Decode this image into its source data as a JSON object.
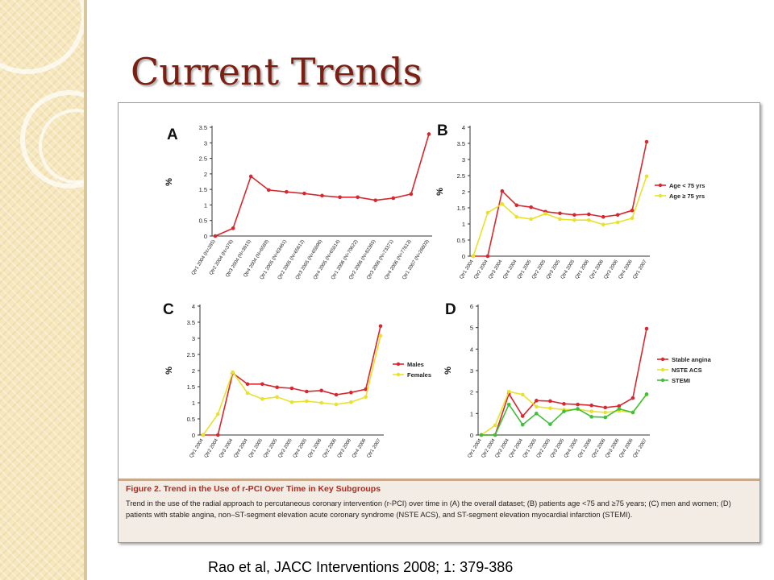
{
  "slide": {
    "title": "Current Trends",
    "citation": "Rao et al, JACC Interventions 2008; 1: 379-386"
  },
  "figure": {
    "caption_title": "Figure 2. Trend in the Use of r-PCI Over Time in Key Subgroups",
    "caption_text": "Trend in the use of the radial approach to percutaneous coronary intervention (r-PCI) over time in (A) the overall dataset; (B) patients age <75 and ≥75 years; (C) men and women; (D) patients with stable angina, non–ST-segment elevation acute coronary syndrome (NSTE ACS), and ST-segment elevation myocardial infarction (STEMI)."
  },
  "colors": {
    "red": "#d7282f",
    "yellow": "#e9e22b",
    "green": "#3fbf3a",
    "title": "#7a1f12",
    "caption_title": "#b5281c"
  },
  "chart_data": [
    {
      "panel": "A",
      "type": "line",
      "ylabel": "%",
      "ylim": [
        0,
        3.5
      ],
      "yticks": [
        "0",
        "0.5",
        "1",
        "1.5",
        "2",
        "2.5",
        "3",
        "3.5"
      ],
      "categories": [
        "Qtr1 2004 (N=285)",
        "Qtr2 2004 (N=376)",
        "Qtr3 2004 (N=3915)",
        "Qtr4 2004 (N=6589)",
        "Qtr1 2005 (N=63461)",
        "Qtr2 2005 (N=65612)",
        "Qtr3 2005 (N=65896)",
        "Qtr4 2005 (N=65814)",
        "Qtr1 2006 (N=70622)",
        "Qtr2 2006 (N=82365)",
        "Qtr3 2006 (N=73371)",
        "Qtr4 2006 (N=77613)",
        "Qtr1 2007 (N=26803)"
      ],
      "series": [
        {
          "color": "#d7282f",
          "values": [
            0,
            0.25,
            1.92,
            1.48,
            1.42,
            1.37,
            1.3,
            1.25,
            1.25,
            1.15,
            1.22,
            1.35,
            3.28
          ]
        }
      ]
    },
    {
      "panel": "B",
      "type": "line",
      "ylabel": "%",
      "ylim": [
        0,
        4
      ],
      "yticks": [
        "0",
        "0.5",
        "1",
        "1.5",
        "2",
        "2.5",
        "3",
        "3.5",
        "4"
      ],
      "categories": [
        "Qtr1 2004",
        "Qtr2 2004",
        "Qtr3 2004",
        "Qtr4 2004",
        "Qtr1 2005",
        "Qtr2 2005",
        "Qtr3 2005",
        "Qtr4 2005",
        "Qtr1 2006",
        "Qtr2 2006",
        "Qtr3 2006",
        "Qtr4 2006",
        "Qtr1 2007"
      ],
      "legend_position": "right",
      "series": [
        {
          "name": "Age < 75 yrs",
          "color": "#d7282f",
          "values": [
            0,
            0,
            2.02,
            1.58,
            1.52,
            1.38,
            1.33,
            1.28,
            1.3,
            1.22,
            1.28,
            1.42,
            3.55
          ]
        },
        {
          "name": "Age ≥ 75 yrs",
          "color": "#e9e22b",
          "values": [
            0,
            1.35,
            1.62,
            1.22,
            1.15,
            1.32,
            1.15,
            1.12,
            1.12,
            0.98,
            1.05,
            1.18,
            2.48
          ]
        }
      ]
    },
    {
      "panel": "C",
      "type": "line",
      "ylabel": "%",
      "ylim": [
        0,
        4
      ],
      "yticks": [
        "0",
        "0.5",
        "1",
        "1.5",
        "2",
        "2.5",
        "3",
        "3.5",
        "4"
      ],
      "categories": [
        "Qtr1 2004",
        "Qtr2 2004",
        "Qtr3 2004",
        "Qtr4 2004",
        "Qtr1 2005",
        "Qtr2 2005",
        "Qtr3 2005",
        "Qtr4 2005",
        "Qtr1 2006",
        "Qtr2 2006",
        "Qtr3 2006",
        "Qtr4 2006",
        "Qtr1 2007"
      ],
      "legend_position": "right",
      "series": [
        {
          "name": "Males",
          "color": "#d7282f",
          "values": [
            0,
            0,
            1.92,
            1.58,
            1.58,
            1.48,
            1.45,
            1.35,
            1.38,
            1.25,
            1.32,
            1.42,
            3.38
          ]
        },
        {
          "name": "Females",
          "color": "#e9e22b",
          "values": [
            0,
            0.65,
            1.95,
            1.3,
            1.12,
            1.18,
            1.02,
            1.05,
            1.0,
            0.95,
            1.02,
            1.18,
            3.08
          ]
        }
      ]
    },
    {
      "panel": "D",
      "type": "line",
      "ylabel": "%",
      "ylim": [
        0,
        6
      ],
      "yticks": [
        "0",
        "1",
        "2",
        "3",
        "4",
        "5",
        "6"
      ],
      "categories": [
        "Qtr1 2004",
        "Qtr2 2004",
        "Qtr3 2004",
        "Qtr4 2004",
        "Qtr1 2005",
        "Qtr2 2005",
        "Qtr3 2005",
        "Qtr4 2005",
        "Qtr1 2006",
        "Qtr2 2006",
        "Qtr3 2006",
        "Qtr4 2006",
        "Qtr1 2007"
      ],
      "legend_position": "right",
      "series": [
        {
          "name": "Stable angina",
          "color": "#d7282f",
          "values": [
            0,
            0,
            1.92,
            0.88,
            1.6,
            1.58,
            1.45,
            1.42,
            1.38,
            1.28,
            1.35,
            1.72,
            4.95
          ]
        },
        {
          "name": "NSTE ACS",
          "color": "#e9e22b",
          "values": [
            0,
            0.45,
            2.02,
            1.88,
            1.32,
            1.25,
            1.18,
            1.2,
            1.1,
            1.05,
            1.12,
            1.05,
            1.88
          ]
        },
        {
          "name": "STEMI",
          "color": "#3fbf3a",
          "values": [
            0,
            0,
            1.42,
            0.48,
            1.0,
            0.5,
            1.1,
            1.22,
            0.85,
            0.82,
            1.22,
            1.05,
            1.9
          ]
        }
      ]
    }
  ]
}
